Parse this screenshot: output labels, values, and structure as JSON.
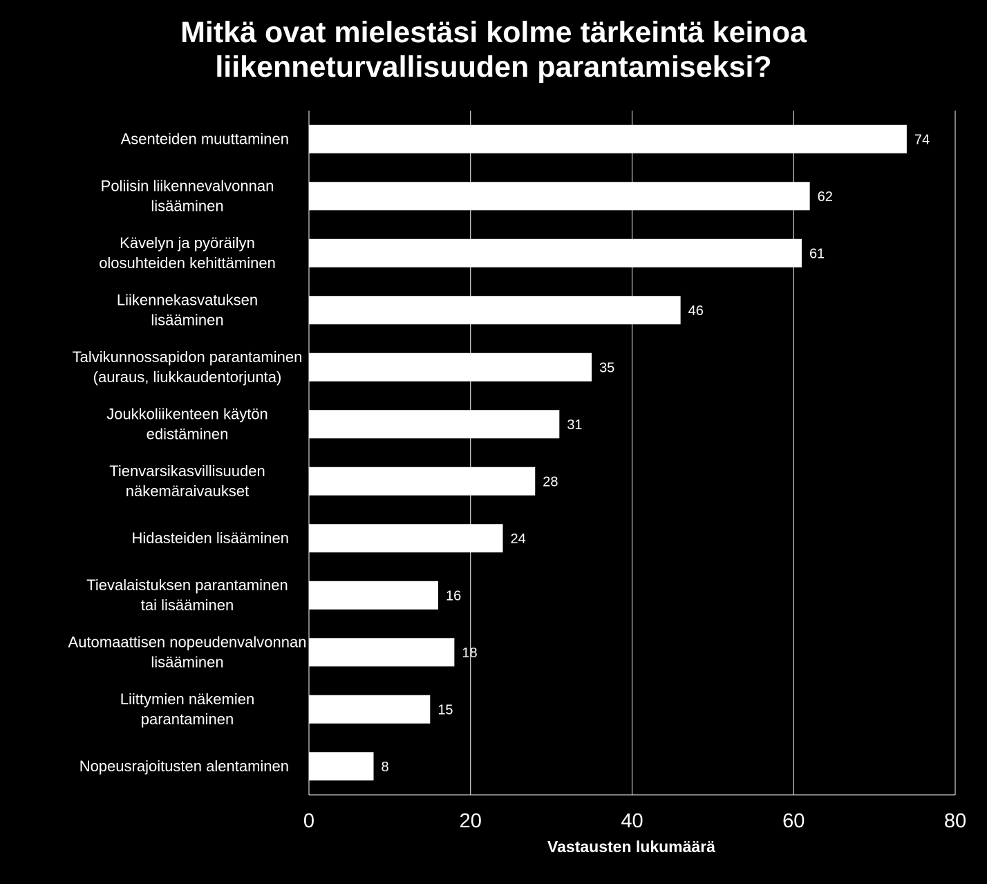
{
  "chart_data": {
    "type": "bar",
    "orientation": "horizontal",
    "title_lines": [
      "Mitkä ovat mielestäsi kolme tärkeintä keinoa",
      "liikenneturvallisuuden parantamiseksi?"
    ],
    "categories": [
      [
        "Asenteiden muuttaminen"
      ],
      [
        "Poliisin liikennevalvonnan",
        "lisääminen"
      ],
      [
        "Kävelyn ja pyöräilyn",
        "olosuhteiden kehittäminen"
      ],
      [
        "Liikennekasvatuksen",
        "lisääminen"
      ],
      [
        "Talvikunnossapidon parantaminen",
        "(auraus, liukkaudentorjunta)"
      ],
      [
        "Joukkoliikenteen käytön",
        "edistäminen"
      ],
      [
        "Tienvarsikasvillisuuden",
        "näkemäraivaukset"
      ],
      [
        "Hidasteiden lisääminen"
      ],
      [
        "Tievalaistuksen parantaminen",
        "tai lisääminen"
      ],
      [
        "Automaattisen nopeudenvalvonnan",
        "lisääminen"
      ],
      [
        "Liittymien näkemien",
        "parantaminen"
      ],
      [
        "Nopeusrajoitusten alentaminen"
      ]
    ],
    "values": [
      74,
      62,
      61,
      46,
      35,
      31,
      28,
      24,
      16,
      18,
      15,
      8
    ],
    "value_labels": [
      "74",
      "62",
      "61",
      "46",
      "35",
      "31",
      "28",
      "24",
      "16",
      "18",
      "15",
      "8"
    ],
    "xlabel": "Vastausten lukumäärä",
    "ylabel": "",
    "xlim": [
      0,
      80
    ],
    "ticks": [
      0,
      20,
      40,
      60,
      80
    ],
    "tick_labels": [
      "0",
      "20",
      "40",
      "60",
      "80"
    ],
    "grid": true,
    "legend": "none",
    "colors": {
      "background": "#000000",
      "bar": "#ffffff",
      "grid": "#ffffff",
      "text": "#ffffff"
    }
  }
}
